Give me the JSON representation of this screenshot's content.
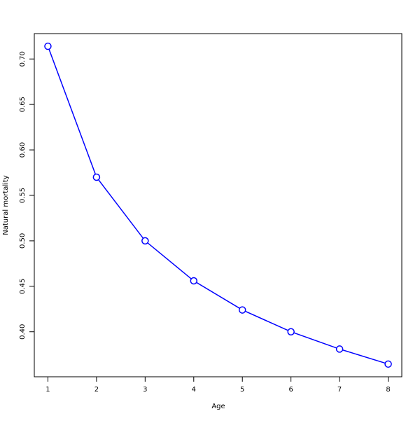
{
  "chart_data": {
    "type": "line",
    "x_label": "Age",
    "y_label": "Natural mortality",
    "x": [
      1,
      2,
      3,
      4,
      5,
      6,
      7,
      8
    ],
    "series": [
      {
        "color": "#0000ff",
        "values": [
          0.714,
          0.57,
          0.5,
          0.456,
          0.424,
          0.4,
          0.381,
          0.3645
        ]
      }
    ],
    "xlim": [
      0.72,
      8.28
    ],
    "ylim": [
      0.3505,
      0.7279
    ],
    "xticks": [
      1,
      2,
      3,
      4,
      5,
      6,
      7,
      8
    ],
    "yticks": [
      {
        "value": 0.4,
        "label": "0.40"
      },
      {
        "value": 0.45,
        "label": "0.45"
      },
      {
        "value": 0.5,
        "label": "0.50"
      },
      {
        "value": 0.55,
        "label": "0.55"
      },
      {
        "value": 0.6,
        "label": "0.60"
      },
      {
        "value": 0.65,
        "label": "0.65"
      },
      {
        "value": 0.7,
        "label": "0.70"
      }
    ]
  }
}
